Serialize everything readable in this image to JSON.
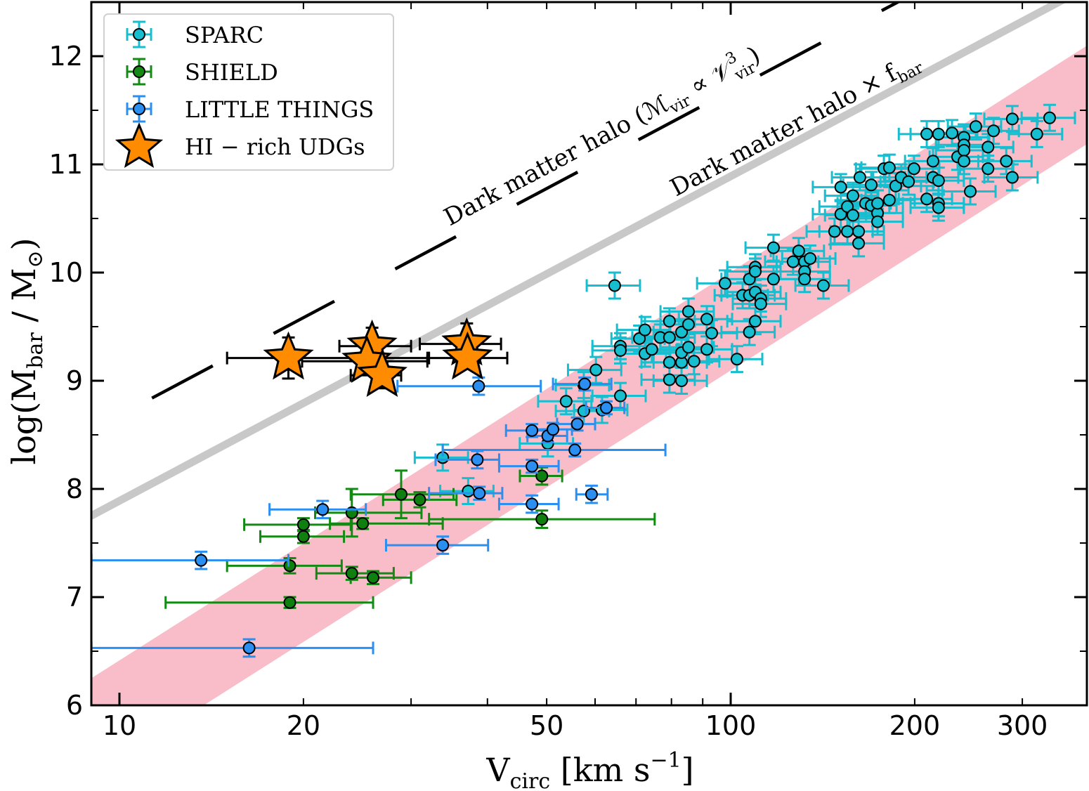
{
  "chart_data": {
    "type": "scatter",
    "xlabel": {
      "main": "V",
      "sub": "circ",
      "unit_open": " [km s",
      "sup": "−1",
      "unit_close": "]"
    },
    "ylabel": {
      "pre": "log(M",
      "sub": "bar",
      "mid": " / M",
      "sub2": "⊙",
      "post": ")"
    },
    "xscale": "log",
    "xlim": [
      9,
      383
    ],
    "ylim": [
      6,
      12.5
    ],
    "xticks": [
      10,
      20,
      50,
      100,
      200,
      300
    ],
    "xtick_labels": [
      "10",
      "20",
      "50",
      "100",
      "200",
      "300"
    ],
    "yticks": [
      6,
      7,
      8,
      9,
      10,
      11,
      12
    ],
    "ytick_labels": [
      "6",
      "7",
      "8",
      "9",
      "10",
      "11",
      "12"
    ],
    "grid": false,
    "legend": {
      "placement": "top-left",
      "entries": [
        "SPARC",
        "SHIELD",
        "LITTLE THINGS",
        "HI − rich UDGs"
      ]
    },
    "colors": {
      "SPARC": "#17becf",
      "SHIELD": "#138a13",
      "LITTLE THINGS": "#2a8ff0",
      "UDG": "#ff8c00",
      "band": "#f7b6c2",
      "halo_fbar": "#c8c8c8",
      "halo": "#000000"
    },
    "lines": [
      {
        "name": "Dark matter halo × f_bar",
        "label_main": "Dark matter halo × f",
        "label_sub": "bar",
        "slope": 3.0,
        "intercept": 4.89,
        "style": "solid-gray"
      },
      {
        "name": "Dark matter halo",
        "label_main": "Dark matter halo (ℳ",
        "label_sub": "vir",
        "label_mid": " ∝ 𝒱",
        "label_sup": "3",
        "label_sub2": "vir",
        "label_post": ")",
        "slope": 3.0,
        "intercept": 5.68,
        "style": "dashed-black"
      }
    ],
    "band": {
      "slope": 3.59,
      "intercept_low": 1.915,
      "intercept_high": 2.825
    },
    "series": [
      {
        "name": "SPARC",
        "marker": "circle",
        "points": [
          [
            33.8,
            8.29
          ],
          [
            37.2,
            7.98
          ],
          [
            53.8,
            8.81
          ],
          [
            50.2,
            8.42
          ],
          [
            57.5,
            8.72
          ],
          [
            60.2,
            9.1
          ],
          [
            57.5,
            8.96
          ],
          [
            61.6,
            8.73
          ],
          [
            64.6,
            9.88
          ],
          [
            66.0,
            9.32
          ],
          [
            66.0,
            9.28
          ],
          [
            66.0,
            8.86
          ],
          [
            70.9,
            9.39
          ],
          [
            72.4,
            9.47
          ],
          [
            72.4,
            9.25
          ],
          [
            74.3,
            9.29
          ],
          [
            76.7,
            9.4
          ],
          [
            79.4,
            9.55
          ],
          [
            79.4,
            9.4
          ],
          [
            79.4,
            9.17
          ],
          [
            79.4,
            9.01
          ],
          [
            83.1,
            9.0
          ],
          [
            83.1,
            9.17
          ],
          [
            83.1,
            9.26
          ],
          [
            83.1,
            9.45
          ],
          [
            85.3,
            9.64
          ],
          [
            85.3,
            9.52
          ],
          [
            85.3,
            9.31
          ],
          [
            87.1,
            9.18
          ],
          [
            91.4,
            9.57
          ],
          [
            91.4,
            9.29
          ],
          [
            93.1,
            9.44
          ],
          [
            97.9,
            9.9
          ],
          [
            102.4,
            9.2
          ],
          [
            104.6,
            9.79
          ],
          [
            107.3,
            9.45
          ],
          [
            107.3,
            9.94
          ],
          [
            107.3,
            9.79
          ],
          [
            109.7,
            10.05
          ],
          [
            109.7,
            10.01
          ],
          [
            109.7,
            9.82
          ],
          [
            109.7,
            9.55
          ],
          [
            112.0,
            9.76
          ],
          [
            112.0,
            9.71
          ],
          [
            117.5,
            10.23
          ],
          [
            117.5,
            9.94
          ],
          [
            126.5,
            10.1
          ],
          [
            129.2,
            10.2
          ],
          [
            132.1,
            10.1
          ],
          [
            132.1,
            10.01
          ],
          [
            132.1,
            9.94
          ],
          [
            134.9,
            10.13
          ],
          [
            141.8,
            9.88
          ],
          [
            147.9,
            10.38
          ],
          [
            151.4,
            10.79
          ],
          [
            151.4,
            10.54
          ],
          [
            155.2,
            10.38
          ],
          [
            155.2,
            10.61
          ],
          [
            158.5,
            10.71
          ],
          [
            158.5,
            10.53
          ],
          [
            161.9,
            10.27
          ],
          [
            161.9,
            10.38
          ],
          [
            162.7,
            10.88
          ],
          [
            166.2,
            10.64
          ],
          [
            169.8,
            10.62
          ],
          [
            169.8,
            10.81
          ],
          [
            173.9,
            10.55
          ],
          [
            173.9,
            10.47
          ],
          [
            173.9,
            10.64
          ],
          [
            178.1,
            10.96
          ],
          [
            181.8,
            10.97
          ],
          [
            181.8,
            10.67
          ],
          [
            186.2,
            10.8
          ],
          [
            190.1,
            10.88
          ],
          [
            195.4,
            10.84
          ],
          [
            199.5,
            10.96
          ],
          [
            209.3,
            10.68
          ],
          [
            209.3,
            11.28
          ],
          [
            214.3,
            11.03
          ],
          [
            214.3,
            10.88
          ],
          [
            218.8,
            11.28
          ],
          [
            218.8,
            10.85
          ],
          [
            218.8,
            10.64
          ],
          [
            218.8,
            10.6
          ],
          [
            230.2,
            11.29
          ],
          [
            235.1,
            11.07
          ],
          [
            240.8,
            11.25
          ],
          [
            240.8,
            11.18
          ],
          [
            240.8,
            11.13
          ],
          [
            240.8,
            11.03
          ],
          [
            246.6,
            10.75
          ],
          [
            251.8,
            11.35
          ],
          [
            263.6,
            11.16
          ],
          [
            263.6,
            10.96
          ],
          [
            269.2,
            11.31
          ],
          [
            282.4,
            11.03
          ],
          [
            288.9,
            11.42
          ],
          [
            288.9,
            10.88
          ],
          [
            316.9,
            11.28
          ],
          [
            332.5,
            11.43
          ]
        ]
      },
      {
        "name": "SHIELD",
        "marker": "circle",
        "points_xlo_xhi_yerr": [
          [
            19.0,
            7.29,
            15.0,
            23.1,
            0.07
          ],
          [
            19.0,
            6.95,
            11.9,
            26.0,
            0.05
          ],
          [
            20.0,
            7.67,
            16.0,
            23.9,
            0.06
          ],
          [
            20.0,
            7.56,
            17.0,
            23.3,
            0.06
          ],
          [
            24.0,
            7.78,
            20.9,
            31.2,
            0.22
          ],
          [
            25.0,
            7.68,
            22.1,
            33.8,
            0.05
          ],
          [
            24.0,
            7.22,
            21.0,
            28.1,
            0.06
          ],
          [
            26.0,
            7.18,
            23.9,
            30.0,
            0.06
          ],
          [
            28.9,
            7.95,
            23.9,
            35.2,
            0.22
          ],
          [
            31.0,
            7.9,
            27.0,
            35.6,
            0.07
          ],
          [
            49.1,
            8.12,
            45.2,
            53.0,
            0.08
          ],
          [
            49.1,
            7.72,
            32.1,
            75.1,
            0.08
          ]
        ]
      },
      {
        "name": "LITTLE THINGS",
        "marker": "circle",
        "points_xlo_xhi_yerr": [
          [
            13.6,
            7.34,
            9.0,
            18.9,
            0.08
          ],
          [
            16.3,
            6.53,
            9.0,
            26.0,
            0.08
          ],
          [
            21.5,
            7.81,
            17.6,
            25.3,
            0.08
          ],
          [
            33.8,
            7.48,
            27.3,
            40.1,
            0.08
          ],
          [
            38.7,
            8.95,
            28.5,
            48.9,
            0.08
          ],
          [
            38.5,
            8.27,
            32.9,
            41.8,
            0.08
          ],
          [
            38.8,
            7.96,
            32.1,
            42.3,
            0.06
          ],
          [
            47.3,
            8.21,
            41.8,
            52.3,
            0.06
          ],
          [
            47.3,
            7.86,
            41.8,
            52.3,
            0.08
          ],
          [
            47.3,
            8.54,
            42.9,
            51.6,
            0.06
          ],
          [
            50.2,
            8.49,
            46.5,
            54.0,
            0.06
          ],
          [
            51.2,
            8.55,
            47.5,
            55.0,
            0.06
          ],
          [
            56.1,
            8.6,
            52.0,
            60.0,
            0.06
          ],
          [
            55.6,
            8.36,
            33.8,
            78.2,
            0.06
          ],
          [
            57.7,
            8.97,
            51.2,
            63.8,
            0.06
          ],
          [
            62.6,
            8.75,
            58.0,
            67.0,
            0.06
          ],
          [
            59.2,
            7.95,
            55.9,
            62.9,
            0.08
          ]
        ]
      },
      {
        "name": "HI − rich UDGs",
        "marker": "star",
        "points_xlo_xhi_yerr": [
          [
            18.9,
            9.21,
            15.0,
            31.9,
            0.19
          ],
          [
            25.9,
            9.32,
            22.9,
            30.0,
            0.17
          ],
          [
            25.4,
            9.18,
            19.9,
            31.9,
            0.1
          ],
          [
            26.9,
            9.05,
            23.9,
            28.9,
            0.12
          ],
          [
            37.0,
            9.34,
            31.0,
            42.1,
            0.19
          ],
          [
            37.1,
            9.21,
            32.1,
            43.1,
            0.1
          ]
        ]
      }
    ]
  }
}
